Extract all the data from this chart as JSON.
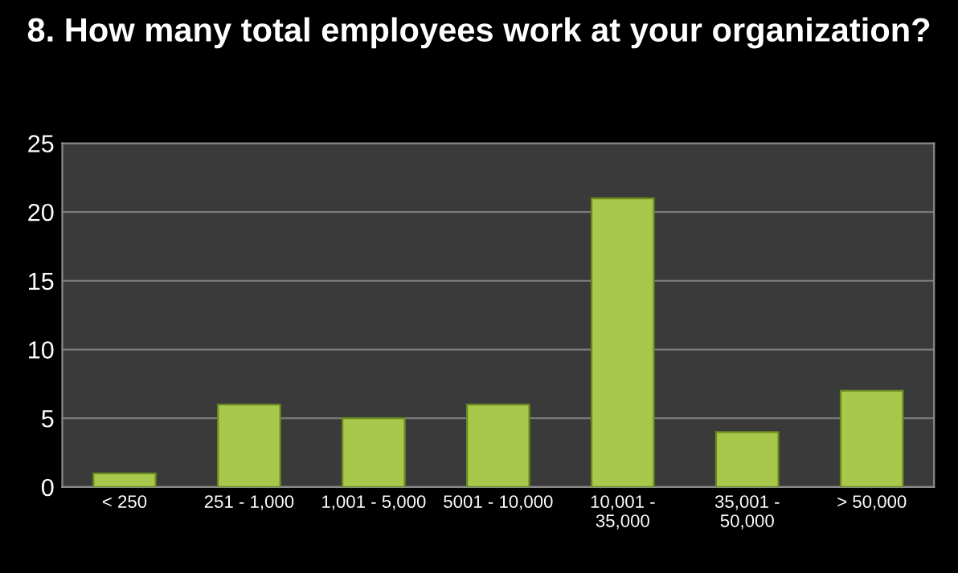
{
  "chart_data": {
    "type": "bar",
    "title": "8. How many total employees work at your organization?",
    "categories": [
      "< 250",
      "251 - 1,000",
      "1,001 - 5,000",
      "5001 - 10,000",
      "10,001 - 35,000",
      "35,001 - 50,000",
      "> 50,000"
    ],
    "values": [
      1,
      6,
      5,
      6,
      21,
      4,
      7
    ],
    "color": "#a8c84c",
    "ylim": [
      0,
      25
    ],
    "yticks": [
      0,
      5,
      10,
      15,
      20,
      25
    ],
    "grid": "y"
  }
}
